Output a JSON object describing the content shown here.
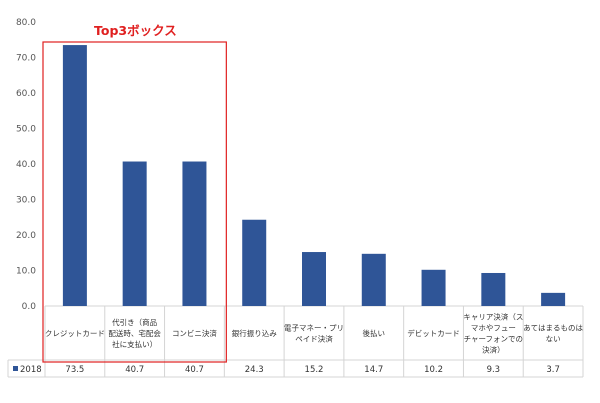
{
  "chart_data": {
    "type": "bar",
    "categories": [
      [
        "クレジットカード"
      ],
      [
        "代引き（商品",
        "配送時、宅配会",
        "社に支払い）"
      ],
      [
        "コンビニ決済"
      ],
      [
        "銀行振り込み"
      ],
      [
        "電子マネー・プリ",
        "ペイド決済"
      ],
      [
        "後払い"
      ],
      [
        "デビットカード"
      ],
      [
        "キャリア決済（ス",
        "マホやフュー",
        "チャーフォンでの",
        "決済）"
      ],
      [
        "あてはまるものは",
        "ない"
      ]
    ],
    "series": [
      {
        "name": "2018",
        "values": [
          73.5,
          40.7,
          40.7,
          24.3,
          15.2,
          14.7,
          10.2,
          9.3,
          3.7
        ],
        "display_values": [
          "73.5",
          "40.7",
          "40.7",
          "24.3",
          "15.2",
          "14.7",
          "10.2",
          "9.3",
          "3.7"
        ]
      }
    ],
    "ylim": [
      0,
      80
    ],
    "yticks": [
      "0.0",
      "10.0",
      "20.0",
      "30.0",
      "40.0",
      "50.0",
      "60.0",
      "70.0",
      "80.0"
    ],
    "grid": false,
    "legend": "data-table",
    "colors": {
      "bar": "#2f5597",
      "highlight_box": "#e02020"
    },
    "annotation": "Top3ボックス",
    "highlight_range": [
      0,
      2
    ]
  }
}
